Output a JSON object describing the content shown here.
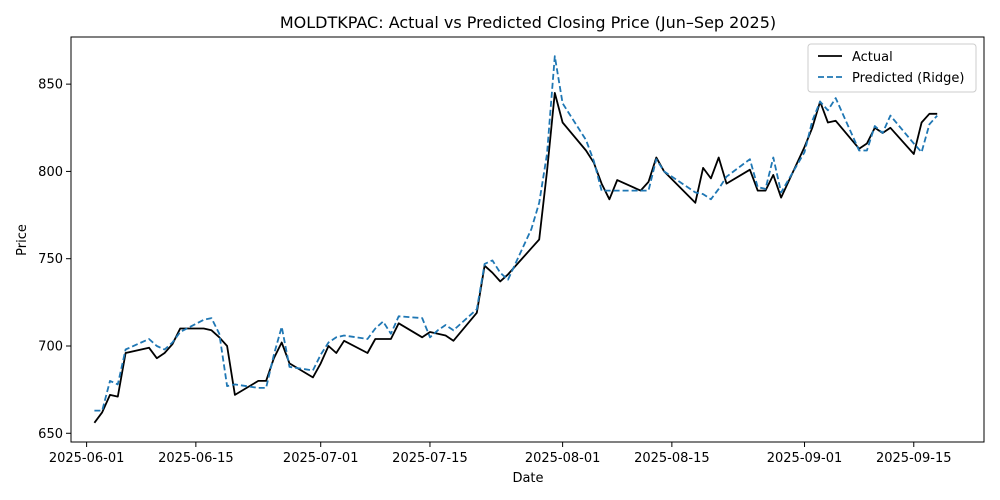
{
  "chart_data": {
    "type": "line",
    "title": "MOLDTKPAC: Actual vs Predicted Closing Price (Jun–Sep 2025)",
    "xlabel": "Date",
    "ylabel": "Price",
    "x_tick_labels": [
      "2025-06-01",
      "2025-06-15",
      "2025-07-01",
      "2025-07-15",
      "2025-08-01",
      "2025-08-15",
      "2025-09-01",
      "2025-09-15"
    ],
    "y_ticks": [
      650,
      700,
      750,
      800,
      850
    ],
    "xlim": [
      "2025-05-30",
      "2025-09-24"
    ],
    "ylim": [
      645,
      877
    ],
    "grid": false,
    "legend_position": "upper right",
    "x": [
      "2025-06-02",
      "2025-06-03",
      "2025-06-04",
      "2025-06-05",
      "2025-06-06",
      "2025-06-09",
      "2025-06-10",
      "2025-06-11",
      "2025-06-12",
      "2025-06-13",
      "2025-06-16",
      "2025-06-17",
      "2025-06-18",
      "2025-06-19",
      "2025-06-20",
      "2025-06-23",
      "2025-06-24",
      "2025-06-25",
      "2025-06-26",
      "2025-06-27",
      "2025-06-30",
      "2025-07-01",
      "2025-07-02",
      "2025-07-03",
      "2025-07-04",
      "2025-07-07",
      "2025-07-08",
      "2025-07-09",
      "2025-07-10",
      "2025-07-11",
      "2025-07-14",
      "2025-07-15",
      "2025-07-16",
      "2025-07-17",
      "2025-07-18",
      "2025-07-21",
      "2025-07-22",
      "2025-07-23",
      "2025-07-24",
      "2025-07-25",
      "2025-07-28",
      "2025-07-29",
      "2025-07-30",
      "2025-07-31",
      "2025-08-01",
      "2025-08-04",
      "2025-08-05",
      "2025-08-06",
      "2025-08-07",
      "2025-08-08",
      "2025-08-11",
      "2025-08-12",
      "2025-08-13",
      "2025-08-14",
      "2025-08-18",
      "2025-08-19",
      "2025-08-20",
      "2025-08-21",
      "2025-08-22",
      "2025-08-25",
      "2025-08-26",
      "2025-08-27",
      "2025-08-28",
      "2025-08-29",
      "2025-09-01",
      "2025-09-02",
      "2025-09-03",
      "2025-09-04",
      "2025-09-05",
      "2025-09-08",
      "2025-09-09",
      "2025-09-10",
      "2025-09-11",
      "2025-09-12",
      "2025-09-15",
      "2025-09-16",
      "2025-09-17",
      "2025-09-18"
    ],
    "series": [
      {
        "name": "Actual",
        "color": "#000000",
        "dash": "solid",
        "values": [
          656,
          662,
          672,
          671,
          696,
          699,
          693,
          696,
          701,
          710,
          710,
          709,
          705,
          700,
          672,
          680,
          680,
          693,
          702,
          690,
          682,
          690,
          700,
          696,
          703,
          696,
          704,
          704,
          704,
          713,
          705,
          708,
          707,
          706,
          703,
          719,
          746,
          742,
          737,
          741,
          756,
          761,
          800,
          845,
          828,
          812,
          805,
          793,
          784,
          795,
          789,
          794,
          808,
          800,
          782,
          802,
          796,
          808,
          793,
          801,
          789,
          789,
          798,
          785,
          814,
          825,
          840,
          828,
          829,
          813,
          816,
          825,
          822,
          825,
          810,
          828,
          833,
          833
        ]
      },
      {
        "name": "Predicted (Ridge)",
        "color": "#1f77b4",
        "dash": "dashed",
        "values": [
          663,
          663,
          680,
          678,
          698,
          704,
          700,
          698,
          702,
          708,
          715,
          716,
          707,
          677,
          678,
          676,
          676,
          695,
          711,
          688,
          686,
          695,
          702,
          705,
          706,
          704,
          710,
          714,
          707,
          717,
          716,
          705,
          709,
          712,
          709,
          721,
          747,
          749,
          742,
          738,
          767,
          782,
          810,
          866,
          839,
          818,
          806,
          789,
          789,
          789,
          789,
          789,
          807,
          800,
          788,
          787,
          784,
          790,
          797,
          807,
          791,
          790,
          808,
          788,
          811,
          829,
          840,
          835,
          842,
          812,
          812,
          826,
          822,
          832,
          816,
          811,
          827,
          832
        ]
      }
    ]
  }
}
